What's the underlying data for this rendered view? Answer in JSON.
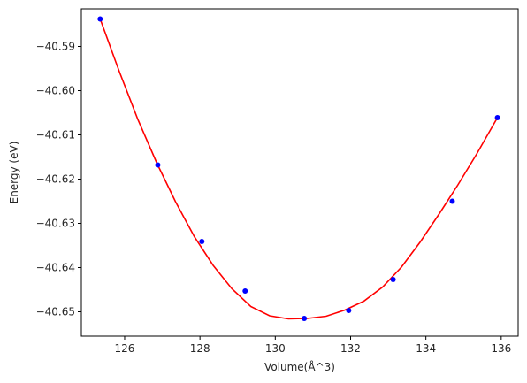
{
  "chart_data": {
    "type": "scatter",
    "title": "",
    "xlabel": "Volume(Å^3)",
    "ylabel": "Energy (eV)",
    "xlim": [
      124.85,
      136.45
    ],
    "ylim": [
      -40.6555,
      -40.5815
    ],
    "xticks": [
      126,
      128,
      130,
      132,
      134,
      136
    ],
    "xtick_labels": [
      "126",
      "128",
      "130",
      "132",
      "134",
      "136"
    ],
    "yticks": [
      -40.59,
      -40.6,
      -40.61,
      -40.62,
      -40.63,
      -40.64,
      -40.65
    ],
    "ytick_labels": [
      "−40.59",
      "−40.60",
      "−40.61",
      "−40.62",
      "−40.63",
      "−40.64",
      "−40.65"
    ],
    "grid": false,
    "series": [
      {
        "kind": "points",
        "color": "#0000ff",
        "x": [
          125.35,
          126.88,
          128.05,
          129.2,
          130.77,
          131.95,
          133.13,
          134.7,
          135.9
        ],
        "y": [
          -40.5838,
          -40.6168,
          -40.6341,
          -40.6453,
          -40.6515,
          -40.6497,
          -40.6427,
          -40.625,
          -40.6061
        ]
      },
      {
        "kind": "fit-curve",
        "color": "#ff0000",
        "x": [
          125.35,
          125.85,
          126.35,
          126.85,
          127.35,
          127.85,
          128.35,
          128.85,
          129.35,
          129.85,
          130.35,
          130.85,
          131.35,
          131.85,
          132.35,
          132.85,
          133.35,
          133.85,
          134.35,
          134.85,
          135.35,
          135.9
        ],
        "y": [
          -40.5838,
          -40.5955,
          -40.6065,
          -40.6163,
          -40.6251,
          -40.633,
          -40.6395,
          -40.6448,
          -40.6488,
          -40.6509,
          -40.6516,
          -40.6515,
          -40.651,
          -40.6496,
          -40.6476,
          -40.6444,
          -40.6399,
          -40.6342,
          -40.6279,
          -40.6213,
          -40.6143,
          -40.6061
        ]
      }
    ]
  }
}
